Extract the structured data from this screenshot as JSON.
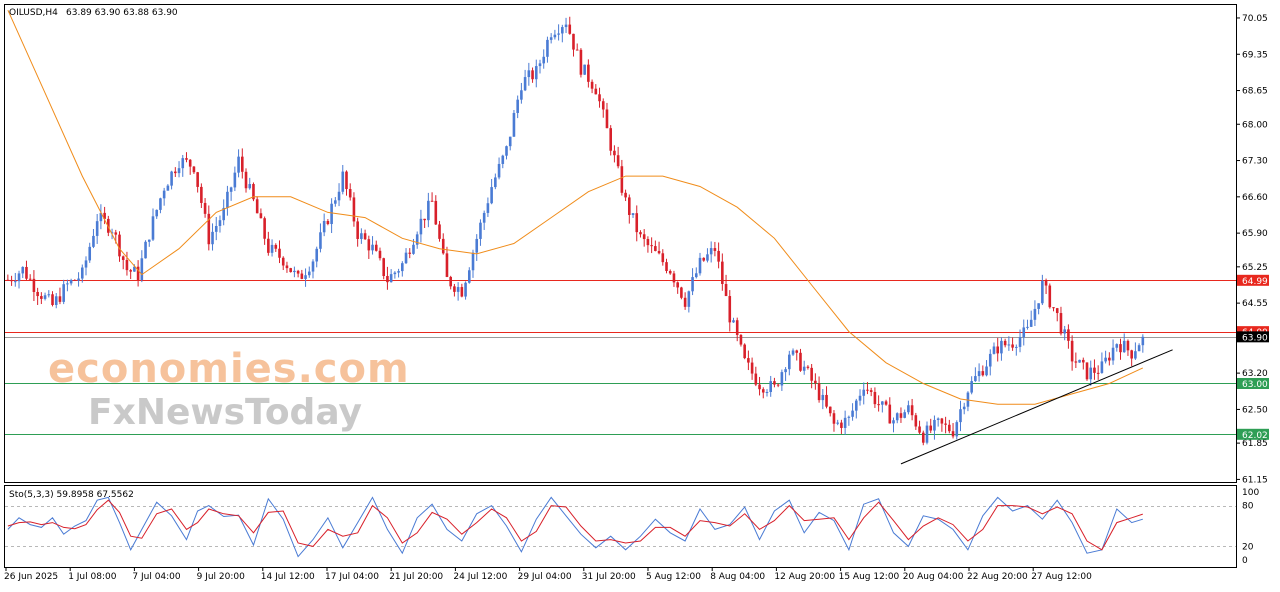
{
  "header": {
    "symbol": "OILUSD,H4",
    "ohlc": "63.89 63.90 63.88 63.90"
  },
  "watermark": {
    "line1": "economies.com",
    "line2": "FxNewsToday"
  },
  "price_scale": [
    "70.05",
    "69.35",
    "68.65",
    "68.00",
    "67.30",
    "66.60",
    "65.90",
    "65.25",
    "64.55",
    "63.20",
    "62.50",
    "61.85",
    "61.15"
  ],
  "price_tags": [
    {
      "label": "64.99",
      "price": 64.99,
      "color": "#e8281e"
    },
    {
      "label": "64.00",
      "price": 64.0,
      "color": "#e8281e"
    },
    {
      "label": "63.90",
      "price": 63.9,
      "color": "#000000"
    },
    {
      "label": "63.00",
      "price": 63.0,
      "color": "#2e9e55"
    },
    {
      "label": "62.02",
      "price": 62.02,
      "color": "#2e9e55"
    }
  ],
  "time_axis": [
    "26 Jun 2025",
    "1 Jul 08:00",
    "7 Jul 04:00",
    "9 Jul 20:00",
    "14 Jul 12:00",
    "17 Jul 04:00",
    "21 Jul 20:00",
    "24 Jul 12:00",
    "29 Jul 04:00",
    "31 Jul 20:00",
    "5 Aug 12:00",
    "8 Aug 04:00",
    "12 Aug 20:00",
    "15 Aug 12:00",
    "20 Aug 04:00",
    "22 Aug 20:00",
    "27 Aug 12:00"
  ],
  "stochastic": {
    "label": "Sto(5,3,3) 59.8958 67.5562",
    "levels": [
      "100",
      "80",
      "20",
      "0"
    ]
  },
  "colors": {
    "bull": "#4a7bd4",
    "bear": "#d8202a",
    "ma": "#f08c1a",
    "resistance": "#e8281e",
    "support": "#2e9e55",
    "stoch_main": "#4a7bd4",
    "stoch_signal": "#d8202a"
  },
  "chart_data": {
    "type": "candlestick",
    "symbol": "OILUSD",
    "timeframe": "H4",
    "ylim": [
      61.1,
      70.3
    ],
    "x_ticks": [
      "26 Jun 2025",
      "1 Jul 08:00",
      "7 Jul 04:00",
      "9 Jul 20:00",
      "14 Jul 12:00",
      "17 Jul 04:00",
      "21 Jul 20:00",
      "24 Jul 12:00",
      "29 Jul 04:00",
      "31 Jul 20:00",
      "5 Aug 12:00",
      "8 Aug 04:00",
      "12 Aug 20:00",
      "15 Aug 12:00",
      "20 Aug 04:00",
      "22 Aug 20:00",
      "27 Aug 12:00"
    ],
    "close_path": [
      [
        0,
        65.0
      ],
      [
        4,
        65.2
      ],
      [
        8,
        64.8
      ],
      [
        12,
        64.5
      ],
      [
        16,
        64.9
      ],
      [
        20,
        65.1
      ],
      [
        24,
        66.2
      ],
      [
        28,
        66.0
      ],
      [
        32,
        65.2
      ],
      [
        35,
        65.1
      ],
      [
        38,
        65.9
      ],
      [
        42,
        66.8
      ],
      [
        46,
        67.3
      ],
      [
        50,
        67.2
      ],
      [
        54,
        65.8
      ],
      [
        58,
        66.3
      ],
      [
        62,
        67.3
      ],
      [
        66,
        66.5
      ],
      [
        70,
        65.6
      ],
      [
        74,
        65.4
      ],
      [
        78,
        65.0
      ],
      [
        82,
        65.4
      ],
      [
        86,
        66.2
      ],
      [
        90,
        67.0
      ],
      [
        94,
        65.9
      ],
      [
        98,
        65.6
      ],
      [
        102,
        65.0
      ],
      [
        106,
        65.3
      ],
      [
        110,
        66.0
      ],
      [
        114,
        66.5
      ],
      [
        118,
        65.0
      ],
      [
        122,
        64.8
      ],
      [
        126,
        65.8
      ],
      [
        130,
        66.8
      ],
      [
        134,
        67.5
      ],
      [
        138,
        68.8
      ],
      [
        142,
        69.0
      ],
      [
        146,
        69.8
      ],
      [
        150,
        70.0
      ],
      [
        154,
        69.1
      ],
      [
        158,
        68.7
      ],
      [
        162,
        67.6
      ],
      [
        166,
        66.5
      ],
      [
        170,
        65.8
      ],
      [
        174,
        65.5
      ],
      [
        178,
        65.2
      ],
      [
        182,
        64.6
      ],
      [
        186,
        65.3
      ],
      [
        190,
        65.6
      ],
      [
        194,
        64.3
      ],
      [
        198,
        63.4
      ],
      [
        202,
        63.0
      ],
      [
        206,
        62.9
      ],
      [
        210,
        63.6
      ],
      [
        214,
        63.3
      ],
      [
        218,
        62.8
      ],
      [
        222,
        62.2
      ],
      [
        226,
        62.3
      ],
      [
        230,
        63.0
      ],
      [
        234,
        62.6
      ],
      [
        238,
        62.3
      ],
      [
        242,
        62.5
      ],
      [
        246,
        62.0
      ],
      [
        250,
        62.2
      ],
      [
        254,
        62.1
      ],
      [
        258,
        62.9
      ],
      [
        262,
        63.3
      ],
      [
        266,
        63.7
      ],
      [
        270,
        63.8
      ],
      [
        274,
        64.0
      ],
      [
        278,
        64.9
      ],
      [
        282,
        64.3
      ],
      [
        286,
        63.5
      ],
      [
        290,
        63.2
      ],
      [
        294,
        63.3
      ],
      [
        298,
        63.8
      ],
      [
        302,
        63.6
      ],
      [
        305,
        63.9
      ]
    ],
    "series": [
      {
        "name": "MA",
        "kind": "moving-average",
        "points": [
          [
            0,
            70.2
          ],
          [
            10,
            68.6
          ],
          [
            20,
            67.0
          ],
          [
            30,
            65.6
          ],
          [
            36,
            65.1
          ],
          [
            46,
            65.6
          ],
          [
            56,
            66.3
          ],
          [
            66,
            66.6
          ],
          [
            76,
            66.6
          ],
          [
            86,
            66.3
          ],
          [
            96,
            66.2
          ],
          [
            106,
            65.8
          ],
          [
            116,
            65.6
          ],
          [
            126,
            65.5
          ],
          [
            136,
            65.7
          ],
          [
            146,
            66.2
          ],
          [
            156,
            66.7
          ],
          [
            166,
            67.0
          ],
          [
            176,
            67.0
          ],
          [
            186,
            66.8
          ],
          [
            196,
            66.4
          ],
          [
            206,
            65.8
          ],
          [
            216,
            64.9
          ],
          [
            226,
            64.0
          ],
          [
            236,
            63.4
          ],
          [
            246,
            63.0
          ],
          [
            256,
            62.7
          ],
          [
            266,
            62.6
          ],
          [
            276,
            62.6
          ],
          [
            286,
            62.8
          ],
          [
            296,
            63.0
          ],
          [
            305,
            63.3
          ]
        ]
      }
    ],
    "horizontal_lines": [
      {
        "price": 64.99,
        "label": "64.99",
        "color": "#e8281e"
      },
      {
        "price": 64.0,
        "label": "64.00",
        "color": "#e8281e"
      },
      {
        "price": 63.0,
        "label": "63.00",
        "color": "#2e9e55"
      },
      {
        "price": 62.02,
        "label": "62.02",
        "color": "#2e9e55"
      }
    ],
    "trendline": {
      "from": [
        240,
        61.45
      ],
      "to": [
        313,
        63.65
      ],
      "color": "#000000"
    },
    "stochastic": {
      "name": "Sto(5,3,3)",
      "main_last": 59.8958,
      "signal_last": 67.5562,
      "ylim": [
        0,
        100
      ],
      "levels": [
        80,
        20
      ],
      "main": [
        [
          0,
          45
        ],
        [
          3,
          62
        ],
        [
          6,
          52
        ],
        [
          9,
          48
        ],
        [
          12,
          62
        ],
        [
          15,
          38
        ],
        [
          18,
          50
        ],
        [
          21,
          58
        ],
        [
          24,
          88
        ],
        [
          27,
          92
        ],
        [
          30,
          55
        ],
        [
          33,
          15
        ],
        [
          36,
          45
        ],
        [
          40,
          85
        ],
        [
          44,
          65
        ],
        [
          48,
          30
        ],
        [
          51,
          72
        ],
        [
          54,
          80
        ],
        [
          58,
          64
        ],
        [
          62,
          66
        ],
        [
          66,
          22
        ],
        [
          70,
          90
        ],
        [
          74,
          60
        ],
        [
          78,
          5
        ],
        [
          82,
          30
        ],
        [
          86,
          62
        ],
        [
          90,
          18
        ],
        [
          94,
          55
        ],
        [
          98,
          92
        ],
        [
          102,
          45
        ],
        [
          106,
          10
        ],
        [
          110,
          62
        ],
        [
          114,
          82
        ],
        [
          118,
          45
        ],
        [
          122,
          28
        ],
        [
          126,
          68
        ],
        [
          130,
          80
        ],
        [
          134,
          50
        ],
        [
          138,
          12
        ],
        [
          142,
          60
        ],
        [
          146,
          92
        ],
        [
          150,
          65
        ],
        [
          154,
          38
        ],
        [
          158,
          18
        ],
        [
          162,
          35
        ],
        [
          166,
          15
        ],
        [
          170,
          35
        ],
        [
          174,
          60
        ],
        [
          178,
          40
        ],
        [
          182,
          28
        ],
        [
          186,
          75
        ],
        [
          190,
          45
        ],
        [
          194,
          52
        ],
        [
          198,
          78
        ],
        [
          202,
          30
        ],
        [
          206,
          72
        ],
        [
          210,
          88
        ],
        [
          214,
          40
        ],
        [
          218,
          70
        ],
        [
          222,
          58
        ],
        [
          226,
          15
        ],
        [
          230,
          82
        ],
        [
          234,
          90
        ],
        [
          238,
          40
        ],
        [
          242,
          20
        ],
        [
          246,
          65
        ],
        [
          250,
          60
        ],
        [
          254,
          45
        ],
        [
          258,
          15
        ],
        [
          262,
          65
        ],
        [
          266,
          92
        ],
        [
          270,
          72
        ],
        [
          274,
          80
        ],
        [
          278,
          60
        ],
        [
          282,
          88
        ],
        [
          286,
          55
        ],
        [
          290,
          10
        ],
        [
          294,
          15
        ],
        [
          298,
          75
        ],
        [
          302,
          55
        ],
        [
          305,
          60
        ]
      ],
      "signal": [
        [
          0,
          50
        ],
        [
          3,
          55
        ],
        [
          6,
          56
        ],
        [
          9,
          52
        ],
        [
          12,
          55
        ],
        [
          15,
          48
        ],
        [
          18,
          46
        ],
        [
          21,
          52
        ],
        [
          24,
          74
        ],
        [
          27,
          88
        ],
        [
          30,
          70
        ],
        [
          33,
          35
        ],
        [
          36,
          32
        ],
        [
          40,
          68
        ],
        [
          44,
          75
        ],
        [
          48,
          45
        ],
        [
          51,
          55
        ],
        [
          54,
          75
        ],
        [
          58,
          68
        ],
        [
          62,
          65
        ],
        [
          66,
          40
        ],
        [
          70,
          70
        ],
        [
          74,
          72
        ],
        [
          78,
          25
        ],
        [
          82,
          20
        ],
        [
          86,
          45
        ],
        [
          90,
          35
        ],
        [
          94,
          40
        ],
        [
          98,
          80
        ],
        [
          102,
          62
        ],
        [
          106,
          25
        ],
        [
          110,
          40
        ],
        [
          114,
          70
        ],
        [
          118,
          60
        ],
        [
          122,
          38
        ],
        [
          126,
          55
        ],
        [
          130,
          75
        ],
        [
          134,
          62
        ],
        [
          138,
          28
        ],
        [
          142,
          42
        ],
        [
          146,
          80
        ],
        [
          150,
          78
        ],
        [
          154,
          50
        ],
        [
          158,
          28
        ],
        [
          162,
          30
        ],
        [
          166,
          25
        ],
        [
          170,
          28
        ],
        [
          174,
          48
        ],
        [
          178,
          48
        ],
        [
          182,
          35
        ],
        [
          186,
          58
        ],
        [
          190,
          55
        ],
        [
          194,
          50
        ],
        [
          198,
          68
        ],
        [
          202,
          45
        ],
        [
          206,
          58
        ],
        [
          210,
          80
        ],
        [
          214,
          58
        ],
        [
          218,
          60
        ],
        [
          222,
          62
        ],
        [
          226,
          30
        ],
        [
          230,
          62
        ],
        [
          234,
          85
        ],
        [
          238,
          58
        ],
        [
          242,
          30
        ],
        [
          246,
          50
        ],
        [
          250,
          62
        ],
        [
          254,
          52
        ],
        [
          258,
          28
        ],
        [
          262,
          45
        ],
        [
          266,
          80
        ],
        [
          270,
          80
        ],
        [
          274,
          78
        ],
        [
          278,
          68
        ],
        [
          282,
          78
        ],
        [
          286,
          68
        ],
        [
          290,
          28
        ],
        [
          294,
          15
        ],
        [
          298,
          55
        ],
        [
          302,
          62
        ],
        [
          305,
          67.5562
        ]
      ]
    }
  }
}
